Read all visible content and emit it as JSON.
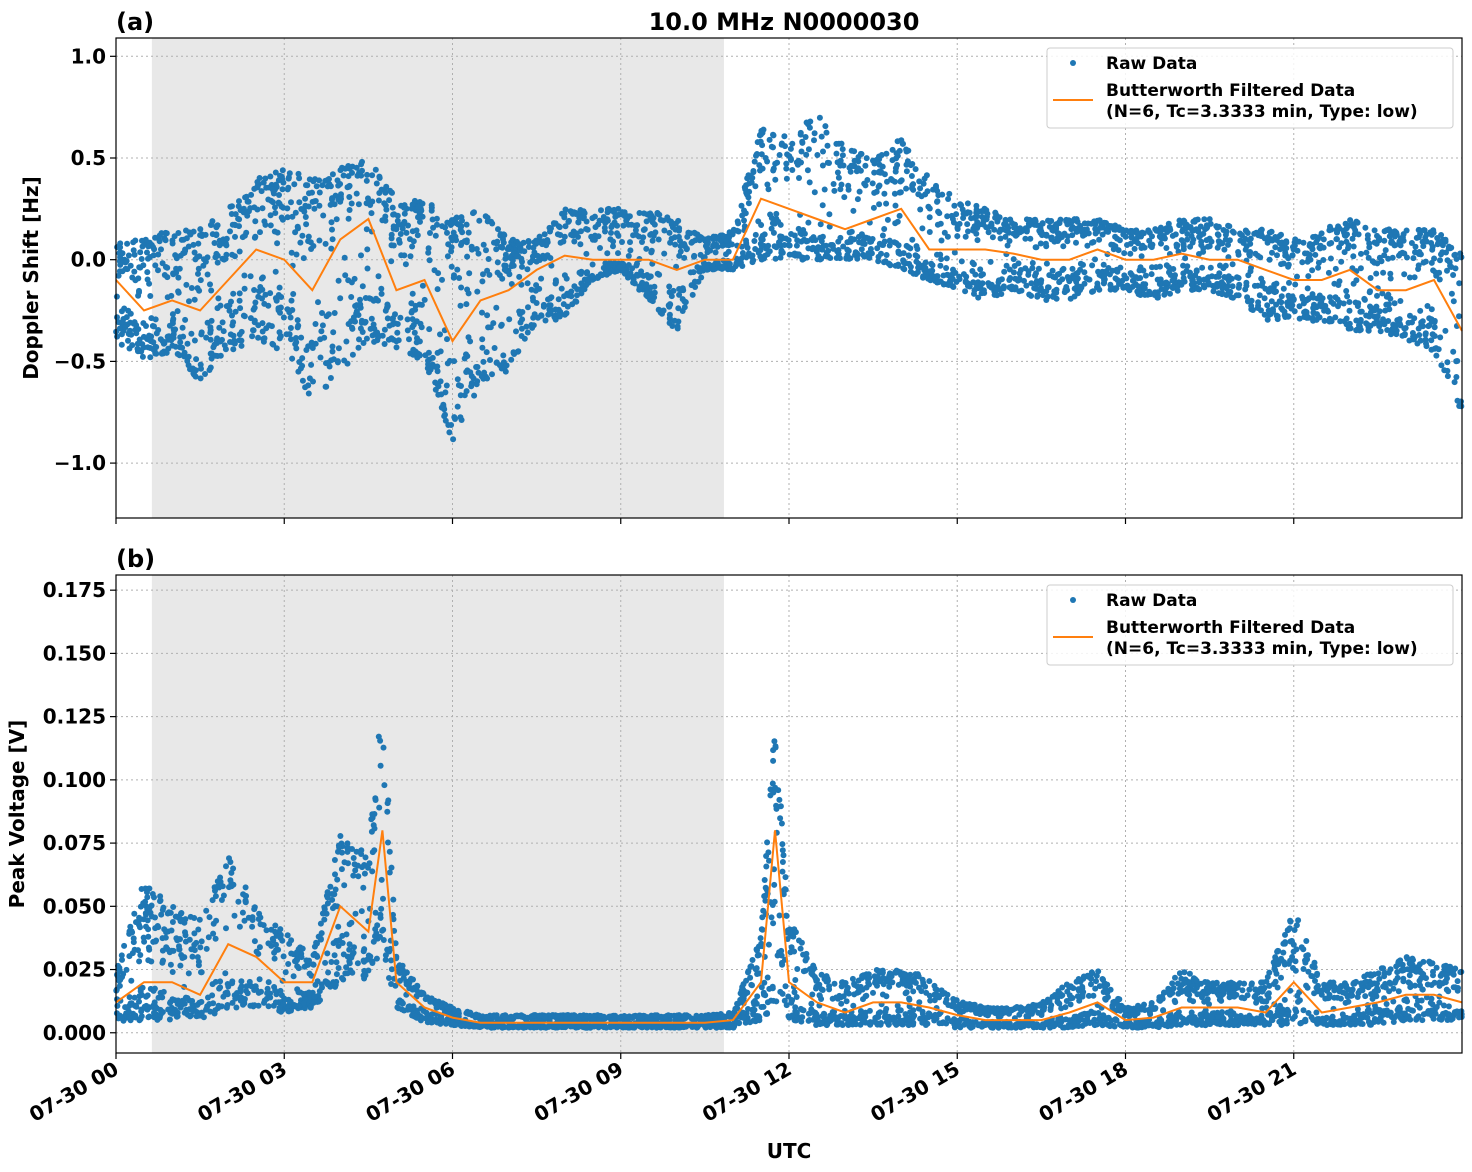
{
  "chart_data": [
    {
      "type": "scatter",
      "panel_label": "(a)",
      "title": "10.0 MHz N0000030",
      "xlabel": "",
      "ylabel": "Doppler Shift [Hz]",
      "xlim_hours": [
        0,
        24
      ],
      "ylim": [
        -1.27,
        1.09
      ],
      "yticks": [
        1.0,
        0.5,
        0.0,
        -0.5,
        -1.0
      ],
      "ytick_labels": [
        "1.0",
        "0.5",
        "0.0",
        "−0.5",
        "−1.0"
      ],
      "xticks_hours": [
        0,
        3,
        6,
        9,
        12,
        15,
        18,
        21
      ],
      "xtick_labels": [
        "07-30 00",
        "07-30 03",
        "07-30 06",
        "07-30 09",
        "07-30 12",
        "07-30 15",
        "07-30 18",
        "07-30 21"
      ],
      "grid": true,
      "shaded_region_hours": [
        0.64,
        10.84
      ],
      "legend_position": "top-right",
      "legend": [
        "Raw Data",
        "Butterworth Filtered Data",
        "(N=6, Tc=3.3333 min, Type: low)"
      ],
      "series": [
        {
          "name": "Raw Data",
          "kind": "scatter-envelope",
          "x": [
            0,
            0.5,
            1,
            1.5,
            2,
            2.5,
            3,
            3.5,
            4,
            4.5,
            5,
            5.5,
            6,
            6.5,
            7,
            7.5,
            8,
            8.5,
            9,
            9.5,
            10,
            10.5,
            11,
            11.5,
            12,
            12.5,
            13,
            13.5,
            14,
            14.5,
            15,
            15.5,
            16,
            16.5,
            17,
            17.5,
            18,
            18.5,
            19,
            19.5,
            20,
            20.5,
            21,
            21.5,
            22,
            22.5,
            23,
            23.5,
            24
          ],
          "low": [
            -0.4,
            -0.5,
            -0.45,
            -0.6,
            -0.45,
            -0.4,
            -0.45,
            -0.7,
            -0.55,
            -0.4,
            -0.45,
            -0.5,
            -0.9,
            -0.6,
            -0.55,
            -0.3,
            -0.3,
            -0.1,
            -0.05,
            -0.2,
            -0.35,
            -0.05,
            -0.05,
            0.0,
            0.0,
            0.0,
            0.0,
            0.0,
            -0.05,
            -0.1,
            -0.15,
            -0.2,
            -0.15,
            -0.2,
            -0.2,
            -0.15,
            -0.15,
            -0.2,
            -0.15,
            -0.15,
            -0.2,
            -0.3,
            -0.3,
            -0.3,
            -0.35,
            -0.35,
            -0.4,
            -0.45,
            -0.75
          ],
          "high": [
            0.1,
            0.1,
            0.15,
            0.15,
            0.25,
            0.4,
            0.45,
            0.4,
            0.45,
            0.5,
            0.3,
            0.3,
            0.2,
            0.25,
            0.1,
            0.1,
            0.25,
            0.25,
            0.25,
            0.25,
            0.2,
            0.1,
            0.15,
            0.65,
            0.6,
            0.75,
            0.55,
            0.5,
            0.6,
            0.4,
            0.3,
            0.25,
            0.2,
            0.2,
            0.2,
            0.2,
            0.15,
            0.15,
            0.2,
            0.2,
            0.15,
            0.15,
            0.1,
            0.15,
            0.2,
            0.15,
            0.15,
            0.15,
            0.05
          ]
        },
        {
          "name": "Butterworth Filtered Data",
          "kind": "line",
          "x": [
            0,
            0.5,
            1,
            1.5,
            2,
            2.5,
            3,
            3.5,
            4,
            4.5,
            5,
            5.5,
            6,
            6.5,
            7,
            7.5,
            8,
            8.5,
            9,
            9.5,
            10,
            10.5,
            11,
            11.5,
            12,
            12.5,
            13,
            13.5,
            14,
            14.5,
            15,
            15.5,
            16,
            16.5,
            17,
            17.5,
            18,
            18.5,
            19,
            19.5,
            20,
            20.5,
            21,
            21.5,
            22,
            22.5,
            23,
            23.5,
            24
          ],
          "y": [
            -0.1,
            -0.25,
            -0.2,
            -0.25,
            -0.1,
            0.05,
            0.0,
            -0.15,
            0.1,
            0.2,
            -0.15,
            -0.1,
            -0.4,
            -0.2,
            -0.15,
            -0.05,
            0.02,
            0.0,
            0.0,
            0.0,
            -0.05,
            0.0,
            0.0,
            0.3,
            0.25,
            0.2,
            0.15,
            0.2,
            0.25,
            0.05,
            0.05,
            0.05,
            0.03,
            0.0,
            0.0,
            0.05,
            0.0,
            0.0,
            0.03,
            0.0,
            0.0,
            -0.05,
            -0.1,
            -0.1,
            -0.05,
            -0.15,
            -0.15,
            -0.1,
            -0.35
          ]
        }
      ]
    },
    {
      "type": "scatter",
      "panel_label": "(b)",
      "title": "",
      "xlabel": "UTC",
      "ylabel": "Peak Voltage [V]",
      "xlim_hours": [
        0,
        24
      ],
      "ylim": [
        -0.008,
        0.181
      ],
      "yticks": [
        0.175,
        0.15,
        0.125,
        0.1,
        0.075,
        0.05,
        0.025,
        0.0
      ],
      "ytick_labels": [
        "0.175",
        "0.150",
        "0.125",
        "0.100",
        "0.075",
        "0.050",
        "0.025",
        "0.000"
      ],
      "xticks_hours": [
        0,
        3,
        6,
        9,
        12,
        15,
        18,
        21
      ],
      "xtick_labels": [
        "07-30 00",
        "07-30 03",
        "07-30 06",
        "07-30 09",
        "07-30 12",
        "07-30 15",
        "07-30 18",
        "07-30 21"
      ],
      "grid": true,
      "shaded_region_hours": [
        0.64,
        10.84
      ],
      "legend_position": "top-right",
      "legend": [
        "Raw Data",
        "Butterworth Filtered Data",
        "(N=6, Tc=3.3333 min, Type: low)"
      ],
      "series": [
        {
          "name": "Raw Data",
          "kind": "scatter-envelope",
          "x": [
            0,
            0.5,
            1,
            1.5,
            2,
            2.5,
            3,
            3.5,
            4,
            4.5,
            4.75,
            5,
            5.5,
            6,
            6.5,
            7,
            7.5,
            8,
            8.5,
            9,
            9.5,
            10,
            10.5,
            11,
            11.5,
            11.75,
            12,
            12.5,
            13,
            13.5,
            14,
            14.5,
            15,
            15.5,
            16,
            16.5,
            17,
            17.5,
            18,
            18.5,
            19,
            19.5,
            20,
            20.5,
            21,
            21.5,
            22,
            22.5,
            23,
            23.5,
            24
          ],
          "low": [
            0.004,
            0.005,
            0.005,
            0.005,
            0.01,
            0.01,
            0.008,
            0.01,
            0.02,
            0.02,
            0.03,
            0.01,
            0.004,
            0.003,
            0.002,
            0.002,
            0.002,
            0.002,
            0.002,
            0.002,
            0.002,
            0.002,
            0.002,
            0.002,
            0.005,
            0.01,
            0.005,
            0.003,
            0.003,
            0.003,
            0.003,
            0.003,
            0.002,
            0.002,
            0.002,
            0.002,
            0.002,
            0.003,
            0.002,
            0.002,
            0.003,
            0.003,
            0.003,
            0.003,
            0.003,
            0.003,
            0.003,
            0.003,
            0.005,
            0.005,
            0.005
          ],
          "high": [
            0.025,
            0.06,
            0.05,
            0.045,
            0.07,
            0.05,
            0.04,
            0.03,
            0.08,
            0.07,
            0.14,
            0.03,
            0.015,
            0.01,
            0.007,
            0.007,
            0.007,
            0.007,
            0.007,
            0.007,
            0.007,
            0.007,
            0.007,
            0.008,
            0.04,
            0.125,
            0.045,
            0.025,
            0.02,
            0.025,
            0.025,
            0.022,
            0.013,
            0.01,
            0.01,
            0.012,
            0.02,
            0.025,
            0.01,
            0.012,
            0.025,
            0.02,
            0.02,
            0.02,
            0.05,
            0.02,
            0.02,
            0.025,
            0.03,
            0.028,
            0.025
          ]
        },
        {
          "name": "Butterworth Filtered Data",
          "kind": "line",
          "x": [
            0,
            0.5,
            1,
            1.5,
            2,
            2.5,
            3,
            3.5,
            4,
            4.5,
            4.75,
            5,
            5.5,
            6,
            6.5,
            7,
            7.5,
            8,
            8.5,
            9,
            9.5,
            10,
            10.5,
            11,
            11.5,
            11.75,
            12,
            12.5,
            13,
            13.5,
            14,
            14.5,
            15,
            15.5,
            16,
            16.5,
            17,
            17.5,
            18,
            18.5,
            19,
            19.5,
            20,
            20.5,
            21,
            21.5,
            22,
            22.5,
            23,
            23.5,
            24
          ],
          "y": [
            0.012,
            0.02,
            0.02,
            0.015,
            0.035,
            0.03,
            0.02,
            0.02,
            0.05,
            0.04,
            0.08,
            0.02,
            0.01,
            0.006,
            0.004,
            0.004,
            0.004,
            0.004,
            0.004,
            0.004,
            0.004,
            0.004,
            0.004,
            0.005,
            0.02,
            0.08,
            0.02,
            0.012,
            0.008,
            0.012,
            0.012,
            0.01,
            0.007,
            0.005,
            0.005,
            0.005,
            0.008,
            0.012,
            0.005,
            0.006,
            0.01,
            0.01,
            0.01,
            0.008,
            0.02,
            0.008,
            0.01,
            0.012,
            0.015,
            0.015,
            0.012
          ]
        }
      ]
    }
  ],
  "colors": {
    "raw": "#1f77b4",
    "filtered": "#ff7f0e",
    "shade": "#e8e8e8",
    "grid": "#b0b0b0"
  }
}
